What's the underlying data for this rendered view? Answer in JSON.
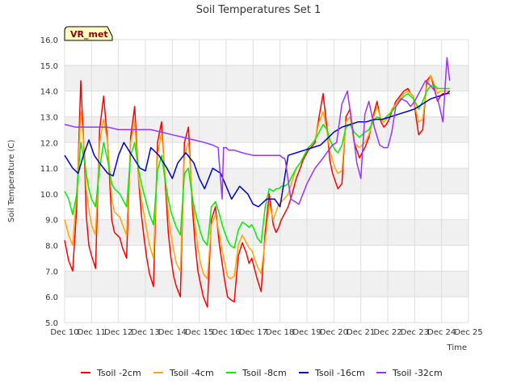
{
  "chart_data": {
    "type": "line",
    "title": "Soil Temperatures Set 1",
    "xlabel": "Time",
    "ylabel": "Soil Temperature (C)",
    "badge": "VR_met",
    "xlim": [
      10,
      25
    ],
    "ylim": [
      5.0,
      16.0
    ],
    "x_ticks": [
      10,
      11,
      12,
      13,
      14,
      15,
      16,
      17,
      18,
      19,
      20,
      21,
      22,
      23,
      24,
      25
    ],
    "x_tick_labels": [
      "Dec 10",
      "Dec 11",
      "Dec 12",
      "Dec 13",
      "Dec 14",
      "Dec 15",
      "Dec 16",
      "Dec 17",
      "Dec 18",
      "Dec 19",
      "Dec 20",
      "Dec 21",
      "Dec 22",
      "Dec 23",
      "Dec 24",
      "Dec 25"
    ],
    "y_ticks": [
      5.0,
      6.0,
      7.0,
      8.0,
      9.0,
      10.0,
      11.0,
      12.0,
      13.0,
      14.0,
      15.0,
      16.0
    ],
    "y_tick_labels": [
      "5.0",
      "6.0",
      "7.0",
      "8.0",
      "9.0",
      "10.0",
      "11.0",
      "12.0",
      "13.0",
      "14.0",
      "15.0",
      "16.0"
    ],
    "grid": true,
    "banded_background": true,
    "legend_position": "bottom",
    "series": [
      {
        "name": "Tsoil -2cm",
        "color": "#ff0000",
        "x": [
          10.0,
          10.15,
          10.3,
          10.45,
          10.6,
          10.75,
          10.8,
          10.9,
          11.0,
          11.15,
          11.3,
          11.45,
          11.6,
          11.75,
          11.85,
          11.95,
          12.05,
          12.15,
          12.3,
          12.45,
          12.6,
          12.75,
          12.85,
          12.95,
          13.05,
          13.15,
          13.3,
          13.45,
          13.6,
          13.75,
          13.85,
          13.95,
          14.05,
          14.15,
          14.3,
          14.45,
          14.6,
          14.75,
          14.85,
          14.95,
          15.05,
          15.15,
          15.3,
          15.45,
          15.6,
          15.75,
          15.85,
          15.95,
          16.05,
          16.15,
          16.3,
          16.45,
          16.6,
          16.75,
          16.85,
          16.95,
          17.05,
          17.15,
          17.3,
          17.45,
          17.6,
          17.75,
          17.85,
          17.95,
          18.05,
          18.15,
          18.3,
          18.45,
          18.6,
          18.75,
          18.85,
          18.95,
          19.05,
          19.15,
          19.3,
          19.45,
          19.6,
          19.75,
          19.85,
          19.95,
          20.05,
          20.15,
          20.3,
          20.45,
          20.6,
          20.75,
          20.85,
          20.95,
          21.05,
          21.15,
          21.3,
          21.45,
          21.6,
          21.75,
          21.85,
          21.95,
          22.05,
          22.15,
          22.3,
          22.45,
          22.6,
          22.75,
          22.85,
          22.95,
          23.05,
          23.15,
          23.3,
          23.45,
          23.6,
          23.75,
          23.85,
          23.95,
          24.05,
          24.15,
          24.3
        ],
        "y": [
          8.2,
          7.4,
          7.0,
          9.5,
          14.4,
          11.0,
          9.2,
          8.0,
          7.6,
          7.1,
          12.5,
          13.8,
          12.0,
          9.0,
          8.5,
          8.4,
          8.3,
          7.9,
          7.5,
          12.2,
          13.4,
          10.5,
          9.2,
          8.3,
          7.5,
          6.9,
          6.4,
          12.0,
          12.8,
          10.2,
          8.5,
          7.5,
          6.8,
          6.4,
          6.0,
          12.0,
          12.6,
          9.4,
          8.0,
          7.0,
          6.5,
          6.0,
          5.6,
          9.0,
          9.5,
          8.0,
          7.3,
          6.6,
          6.0,
          5.9,
          5.8,
          7.6,
          8.1,
          7.7,
          7.3,
          7.5,
          7.1,
          6.7,
          6.2,
          8.5,
          10.0,
          8.8,
          8.5,
          8.7,
          9.0,
          9.2,
          9.5,
          10.0,
          10.6,
          11.0,
          11.3,
          11.5,
          11.7,
          11.8,
          12.0,
          13.0,
          13.9,
          12.5,
          11.3,
          10.8,
          10.5,
          10.2,
          10.4,
          13.0,
          13.3,
          12.0,
          11.7,
          11.4,
          11.6,
          11.8,
          12.2,
          13.0,
          13.6,
          12.8,
          12.6,
          12.7,
          12.9,
          13.2,
          13.6,
          13.8,
          14.0,
          14.1,
          13.9,
          13.8,
          13.0,
          12.3,
          12.5,
          14.4,
          14.6,
          14.0,
          13.6,
          13.8,
          13.9,
          13.9,
          13.9
        ]
      },
      {
        "name": "Tsoil -4cm",
        "color": "#ffa500",
        "x": [
          10.0,
          10.15,
          10.3,
          10.45,
          10.6,
          10.75,
          10.8,
          10.9,
          11.0,
          11.15,
          11.3,
          11.45,
          11.6,
          11.75,
          11.85,
          11.95,
          12.05,
          12.15,
          12.3,
          12.45,
          12.6,
          12.75,
          12.85,
          12.95,
          13.05,
          13.15,
          13.3,
          13.45,
          13.6,
          13.75,
          13.85,
          13.95,
          14.05,
          14.15,
          14.3,
          14.45,
          14.6,
          14.75,
          14.85,
          14.95,
          15.05,
          15.15,
          15.3,
          15.45,
          15.6,
          15.75,
          15.85,
          15.95,
          16.05,
          16.15,
          16.3,
          16.45,
          16.6,
          16.75,
          16.85,
          16.95,
          17.05,
          17.15,
          17.3,
          17.45,
          17.6,
          17.75,
          17.85,
          17.95,
          18.05,
          18.15,
          18.3,
          18.45,
          18.6,
          18.75,
          18.85,
          18.95,
          19.05,
          19.15,
          19.3,
          19.45,
          19.6,
          19.75,
          19.85,
          19.95,
          20.05,
          20.15,
          20.3,
          20.45,
          20.6,
          20.75,
          20.85,
          20.95,
          21.05,
          21.15,
          21.3,
          21.45,
          21.6,
          21.75,
          21.85,
          21.95,
          22.05,
          22.15,
          22.3,
          22.45,
          22.6,
          22.75,
          22.85,
          22.95,
          23.05,
          23.15,
          23.3,
          23.45,
          23.6,
          23.75,
          23.85,
          23.95,
          24.05,
          24.15,
          24.3
        ],
        "y": [
          9.0,
          8.4,
          8.0,
          10.0,
          13.2,
          11.5,
          10.2,
          9.4,
          8.8,
          8.4,
          12.0,
          12.9,
          12.0,
          9.8,
          9.3,
          9.2,
          9.1,
          8.8,
          8.4,
          12.0,
          12.8,
          10.6,
          9.8,
          9.2,
          8.6,
          8.0,
          7.5,
          11.5,
          12.4,
          10.5,
          9.2,
          8.4,
          7.8,
          7.3,
          7.0,
          11.5,
          12.0,
          9.8,
          8.7,
          7.9,
          7.3,
          6.9,
          6.7,
          8.8,
          9.2,
          8.4,
          7.8,
          7.3,
          6.8,
          6.7,
          6.8,
          8.0,
          8.4,
          8.1,
          7.9,
          7.8,
          7.5,
          7.2,
          6.9,
          8.2,
          9.6,
          9.0,
          9.3,
          9.6,
          9.7,
          9.8,
          10.0,
          10.5,
          11.0,
          11.2,
          11.4,
          11.6,
          11.8,
          11.9,
          12.1,
          12.8,
          13.2,
          12.4,
          11.7,
          11.3,
          11.0,
          10.8,
          10.9,
          12.8,
          13.0,
          12.0,
          11.9,
          11.8,
          11.9,
          12.0,
          12.3,
          12.9,
          13.4,
          12.9,
          12.8,
          12.9,
          13.0,
          13.3,
          13.5,
          13.7,
          13.9,
          14.0,
          13.9,
          13.8,
          13.2,
          12.8,
          12.9,
          14.2,
          14.6,
          14.2,
          13.9,
          14.0,
          14.0,
          14.0,
          14.0
        ]
      },
      {
        "name": "Tsoil -8cm",
        "color": "#00ee00",
        "x": [
          10.0,
          10.15,
          10.3,
          10.45,
          10.6,
          10.75,
          10.8,
          10.9,
          11.0,
          11.15,
          11.3,
          11.45,
          11.6,
          11.75,
          11.85,
          11.95,
          12.05,
          12.15,
          12.3,
          12.45,
          12.6,
          12.75,
          12.85,
          12.95,
          13.05,
          13.15,
          13.3,
          13.45,
          13.6,
          13.75,
          13.85,
          13.95,
          14.05,
          14.15,
          14.3,
          14.45,
          14.6,
          14.75,
          14.85,
          14.95,
          15.05,
          15.15,
          15.3,
          15.45,
          15.6,
          15.75,
          15.85,
          15.95,
          16.05,
          16.15,
          16.3,
          16.45,
          16.6,
          16.75,
          16.85,
          16.95,
          17.05,
          17.15,
          17.3,
          17.45,
          17.6,
          17.75,
          17.85,
          17.95,
          18.05,
          18.15,
          18.3,
          18.45,
          18.6,
          18.75,
          18.85,
          18.95,
          19.05,
          19.15,
          19.3,
          19.45,
          19.6,
          19.75,
          19.85,
          19.95,
          20.05,
          20.15,
          20.3,
          20.45,
          20.6,
          20.75,
          20.85,
          20.95,
          21.05,
          21.15,
          21.3,
          21.45,
          21.6,
          21.75,
          21.85,
          21.95,
          22.05,
          22.15,
          22.3,
          22.45,
          22.6,
          22.75,
          22.85,
          22.95,
          23.05,
          23.15,
          23.3,
          23.45,
          23.6,
          23.75,
          23.85,
          23.95,
          24.05,
          24.15,
          24.3
        ],
        "y": [
          10.1,
          9.8,
          9.2,
          10.0,
          12.0,
          11.2,
          10.8,
          10.2,
          9.8,
          9.5,
          11.0,
          12.0,
          11.3,
          10.4,
          10.2,
          10.1,
          10.0,
          9.8,
          9.5,
          11.5,
          12.0,
          10.9,
          10.4,
          10.0,
          9.6,
          9.2,
          8.8,
          10.9,
          11.5,
          10.4,
          9.8,
          9.3,
          9.0,
          8.7,
          8.4,
          10.8,
          11.0,
          9.8,
          9.3,
          8.9,
          8.5,
          8.2,
          8.0,
          9.5,
          9.7,
          9.2,
          8.8,
          8.5,
          8.2,
          8.0,
          7.9,
          8.6,
          8.9,
          8.8,
          8.7,
          8.8,
          8.6,
          8.3,
          8.1,
          9.5,
          10.2,
          10.1,
          10.2,
          10.2,
          10.3,
          10.3,
          10.4,
          10.7,
          11.0,
          11.2,
          11.4,
          11.6,
          11.8,
          11.9,
          12.1,
          12.4,
          12.7,
          12.5,
          12.1,
          11.9,
          11.7,
          11.6,
          11.9,
          12.6,
          12.7,
          12.4,
          12.3,
          12.2,
          12.3,
          12.4,
          12.5,
          12.8,
          13.0,
          12.9,
          12.9,
          13.0,
          13.1,
          13.2,
          13.4,
          13.6,
          13.8,
          13.9,
          13.8,
          13.7,
          13.5,
          13.3,
          13.6,
          14.0,
          14.2,
          14.2,
          14.1,
          14.1,
          14.1,
          14.1,
          14.1
        ]
      },
      {
        "name": "Tsoil -16cm",
        "color": "#0000cc",
        "x": [
          10.0,
          10.3,
          10.5,
          10.7,
          10.9,
          11.1,
          11.3,
          11.6,
          11.8,
          12.0,
          12.2,
          12.5,
          12.8,
          13.0,
          13.2,
          13.5,
          13.8,
          14.0,
          14.2,
          14.5,
          14.8,
          15.0,
          15.2,
          15.5,
          15.8,
          16.0,
          16.2,
          16.5,
          16.8,
          17.0,
          17.2,
          17.5,
          17.8,
          18.0,
          18.3,
          18.6,
          18.9,
          19.2,
          19.5,
          19.8,
          20.0,
          20.3,
          20.6,
          20.9,
          21.2,
          21.5,
          21.8,
          22.1,
          22.4,
          22.7,
          23.0,
          23.3,
          23.6,
          23.9,
          24.2,
          24.3
        ],
        "y": [
          11.5,
          11.0,
          10.8,
          11.5,
          12.1,
          11.5,
          11.2,
          10.8,
          10.7,
          11.5,
          12.0,
          11.5,
          11.0,
          10.9,
          11.8,
          11.5,
          11.0,
          10.6,
          11.2,
          11.6,
          11.2,
          10.6,
          10.2,
          11.0,
          10.8,
          10.3,
          9.8,
          10.3,
          10.0,
          9.6,
          9.5,
          9.8,
          9.8,
          9.5,
          11.5,
          11.6,
          11.7,
          11.8,
          11.9,
          12.2,
          12.4,
          12.6,
          12.7,
          12.8,
          12.8,
          12.9,
          12.9,
          13.0,
          13.1,
          13.2,
          13.3,
          13.5,
          13.7,
          13.8,
          13.9,
          14.0
        ]
      },
      {
        "name": "Tsoil -32cm",
        "color": "#9933ff",
        "x": [
          10.0,
          10.4,
          10.8,
          11.2,
          11.6,
          12.0,
          12.4,
          12.8,
          13.2,
          13.6,
          14.0,
          14.4,
          14.8,
          15.2,
          15.5,
          15.7,
          15.85,
          15.9,
          16.0,
          16.1,
          16.3,
          16.6,
          17.0,
          17.4,
          17.8,
          18.0,
          18.1,
          18.15,
          18.2,
          18.4,
          18.7,
          19.0,
          19.3,
          19.6,
          19.8,
          19.95,
          20.1,
          20.3,
          20.5,
          20.7,
          20.85,
          21.0,
          21.15,
          21.3,
          21.5,
          21.7,
          21.85,
          22.0,
          22.15,
          22.3,
          22.5,
          22.7,
          22.85,
          23.0,
          23.2,
          23.4,
          23.6,
          23.75,
          23.9,
          24.05,
          24.2,
          24.3
        ],
        "y": [
          12.7,
          12.6,
          12.6,
          12.6,
          12.6,
          12.5,
          12.5,
          12.5,
          12.5,
          12.4,
          12.3,
          12.2,
          12.1,
          12.0,
          11.9,
          11.8,
          9.8,
          11.8,
          11.8,
          11.7,
          11.7,
          11.6,
          11.5,
          11.5,
          11.5,
          11.5,
          11.4,
          11.4,
          11.3,
          9.8,
          9.6,
          10.4,
          11.0,
          11.4,
          11.7,
          11.9,
          12.0,
          13.5,
          14.0,
          12.5,
          11.2,
          10.6,
          13.1,
          13.6,
          12.6,
          11.9,
          11.8,
          11.8,
          12.4,
          13.4,
          13.7,
          13.6,
          13.4,
          13.6,
          14.0,
          14.4,
          14.2,
          14.0,
          13.5,
          12.8,
          15.3,
          14.4
        ]
      }
    ]
  }
}
